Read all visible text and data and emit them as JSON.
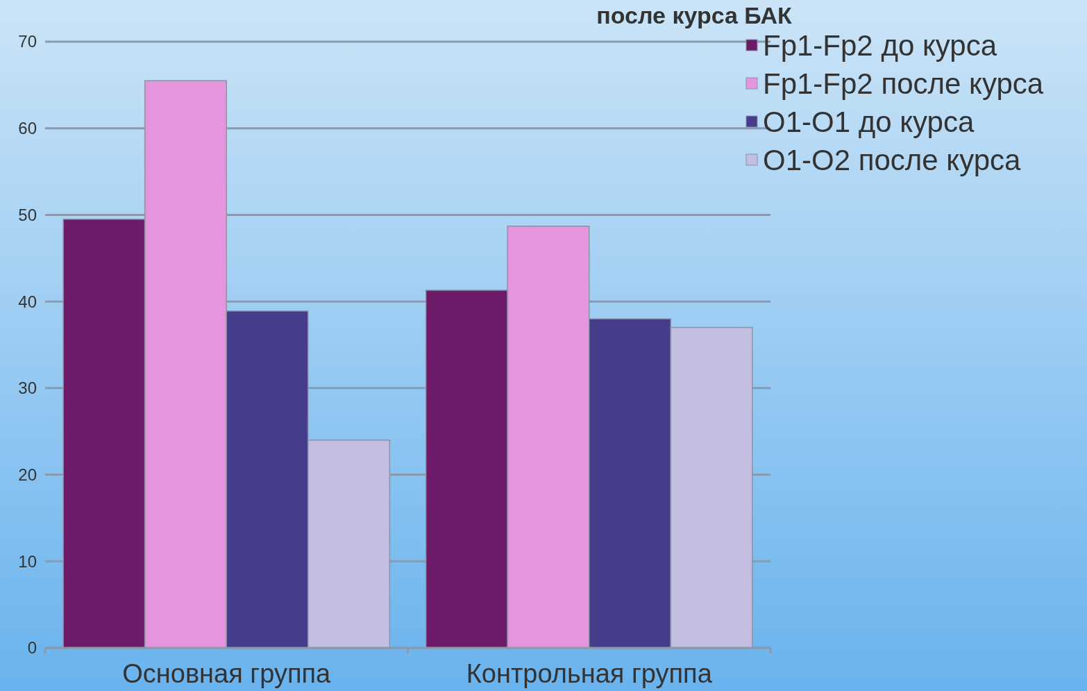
{
  "chart_data": {
    "type": "bar",
    "title": "после курса БАК",
    "categories": [
      "Основная группа",
      "Контрольная группа"
    ],
    "series": [
      {
        "name": "Fp1-Fp2 до курса",
        "color": "#6d1b68",
        "values": [
          49.5,
          41.3
        ]
      },
      {
        "name": "Fp1-Fp2 после курса",
        "color": "#e595de",
        "values": [
          65.5,
          48.7
        ]
      },
      {
        "name": "O1-O1 до курса",
        "color": "#453c8c",
        "values": [
          38.9,
          38
        ]
      },
      {
        "name": "O1-O2 после курса",
        "color": "#c3bde0",
        "values": [
          24,
          37
        ]
      }
    ],
    "ylim": [
      0,
      70
    ],
    "yticks": [
      0,
      10,
      20,
      30,
      40,
      50,
      60,
      70
    ],
    "grid": "y",
    "legend": "top right"
  }
}
